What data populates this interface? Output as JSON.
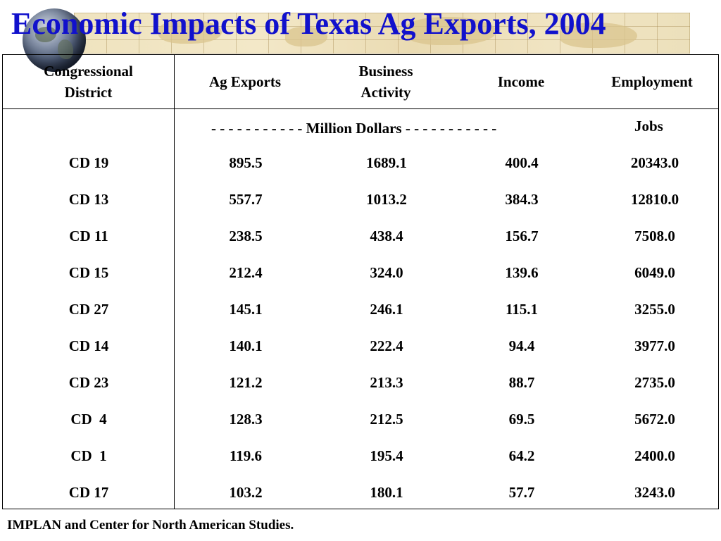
{
  "title": "Economic Impacts of Texas Ag Exports, 2004",
  "table": {
    "headers": {
      "district_line1": "Congressional",
      "district_line2": "District",
      "ag_exports": "Ag Exports",
      "business_line1": "Business",
      "business_line2": "Activity",
      "income": "Income",
      "employment": "Employment"
    },
    "units": {
      "dollars": "- - - - - - - - - - - Million Dollars - - - - - - - - - - -",
      "jobs": "Jobs"
    },
    "rows": [
      {
        "district": "CD 19",
        "ag_exports": "895.5",
        "business_activity": "1689.1",
        "income": "400.4",
        "employment": "20343.0"
      },
      {
        "district": "CD 13",
        "ag_exports": "557.7",
        "business_activity": "1013.2",
        "income": "384.3",
        "employment": "12810.0"
      },
      {
        "district": "CD 11",
        "ag_exports": "238.5",
        "business_activity": "438.4",
        "income": "156.7",
        "employment": "7508.0"
      },
      {
        "district": "CD 15",
        "ag_exports": "212.4",
        "business_activity": "324.0",
        "income": "139.6",
        "employment": "6049.0"
      },
      {
        "district": "CD 27",
        "ag_exports": "145.1",
        "business_activity": "246.1",
        "income": "115.1",
        "employment": "3255.0"
      },
      {
        "district": "CD 14",
        "ag_exports": "140.1",
        "business_activity": "222.4",
        "income": "94.4",
        "employment": "3977.0"
      },
      {
        "district": "CD 23",
        "ag_exports": "121.2",
        "business_activity": "213.3",
        "income": "88.7",
        "employment": "2735.0"
      },
      {
        "district": "CD  4",
        "ag_exports": "128.3",
        "business_activity": "212.5",
        "income": "69.5",
        "employment": "5672.0"
      },
      {
        "district": "CD  1",
        "ag_exports": "119.6",
        "business_activity": "195.4",
        "income": "64.2",
        "employment": "2400.0"
      },
      {
        "district": "CD 17",
        "ag_exports": "103.2",
        "business_activity": "180.1",
        "income": "57.7",
        "employment": "3243.0"
      }
    ]
  },
  "source": "IMPLAN and Center for North American Studies.",
  "colors": {
    "title": "#1111cc"
  }
}
